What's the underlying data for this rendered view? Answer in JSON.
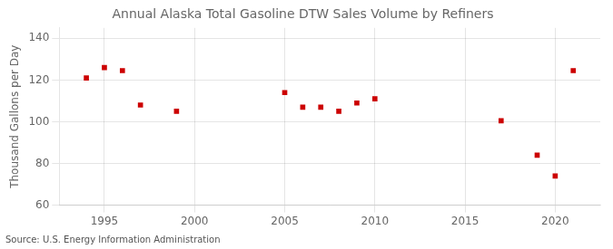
{
  "chart_data": {
    "type": "scatter",
    "title": "Annual Alaska Total Gasoline DTW Sales Volume by Refiners",
    "y_label": "Thousand Gallons per Day",
    "annotations": [
      "Source: U.S. Energy Information Administration"
    ],
    "x": [
      1994,
      1995,
      1996,
      1997,
      1999,
      2005,
      2006,
      2007,
      2008,
      2009,
      2010,
      2017,
      2019,
      2020,
      2021
    ],
    "values": [
      121.0,
      126.0,
      124.5,
      108.0,
      105.0,
      114.0,
      107.0,
      107.0,
      105.0,
      109.0,
      111.0,
      100.5,
      84.0,
      74.0,
      124.5
    ],
    "color": "#cc0000",
    "marker": "square",
    "xlim": [
      1992.5,
      2022.5
    ],
    "ylim": [
      60,
      145
    ],
    "xticks": [
      1995,
      2000,
      2005,
      2010,
      2015,
      2020
    ],
    "yticks": [
      60,
      80,
      100,
      120,
      140
    ],
    "grid": true
  }
}
